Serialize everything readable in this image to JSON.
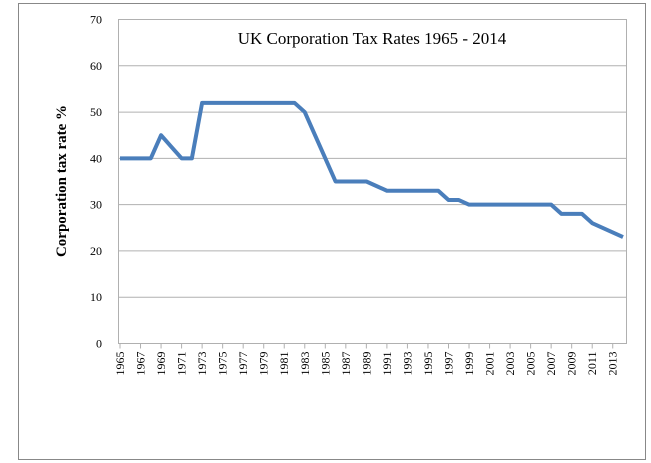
{
  "chart_data": {
    "type": "line",
    "title": "UK Corporation Tax Rates 1965 - 2014",
    "y_label": "Corporation tax rate %",
    "x": [
      1965,
      1966,
      1967,
      1968,
      1969,
      1970,
      1971,
      1972,
      1973,
      1974,
      1975,
      1976,
      1977,
      1978,
      1979,
      1980,
      1981,
      1982,
      1983,
      1984,
      1985,
      1986,
      1987,
      1988,
      1989,
      1990,
      1991,
      1992,
      1993,
      1994,
      1995,
      1996,
      1997,
      1998,
      1999,
      2000,
      2001,
      2002,
      2003,
      2004,
      2005,
      2006,
      2007,
      2008,
      2009,
      2010,
      2011,
      2012,
      2013,
      2014
    ],
    "values": [
      40,
      40,
      40,
      40,
      45,
      42.5,
      40,
      40,
      52,
      52,
      52,
      52,
      52,
      52,
      52,
      52,
      52,
      52,
      50,
      45,
      40,
      35,
      35,
      35,
      35,
      34,
      33,
      33,
      33,
      33,
      33,
      33,
      31,
      31,
      30,
      30,
      30,
      30,
      30,
      30,
      30,
      30,
      30,
      28,
      28,
      28,
      26,
      25,
      24,
      23
    ],
    "color": "#4a7ebb",
    "xlim": [
      1965,
      2014
    ],
    "xticks": [
      1965,
      1967,
      1969,
      1971,
      1973,
      1975,
      1977,
      1979,
      1981,
      1983,
      1985,
      1987,
      1989,
      1991,
      1993,
      1995,
      1997,
      1999,
      2001,
      2003,
      2005,
      2007,
      2009,
      2011,
      2013
    ],
    "ylim": [
      0,
      70
    ],
    "yticks": [
      0,
      10,
      20,
      30,
      40,
      50,
      60,
      70
    ],
    "grid": true
  }
}
